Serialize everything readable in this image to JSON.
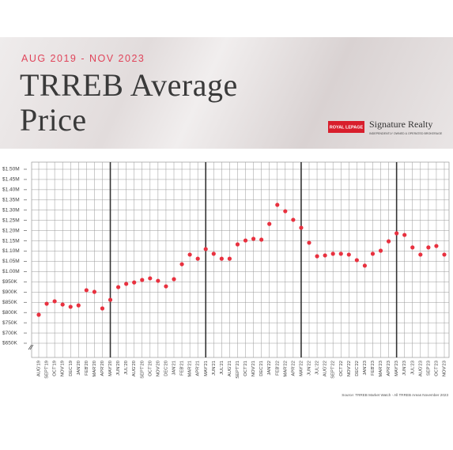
{
  "logo": {
    "brand": "ROYAL LEPAGE",
    "name": "Signature Realty",
    "tagline": "INDEPENDENTLY OWNED & OPERATED BROKERAGE"
  },
  "chart_data": {
    "type": "scatter",
    "title": "TRREB Average Price",
    "subtitle": "AUG 2019 - NOV 2023",
    "source": "Source: TRREB Market Watch - All TRREB Areas November 2023",
    "categories": [
      "AUG'19",
      "SEPT'19",
      "OCT'19",
      "NOV'19",
      "DEC'19",
      "JAN'20",
      "FEB'20",
      "MAR'20",
      "APR'20",
      "MAY'20",
      "JUN'20",
      "JUL'20",
      "AUG'20",
      "SEPT'20",
      "OCT'20",
      "NOV'20",
      "DEC'20",
      "JAN'21",
      "FEB'21",
      "MAR'21",
      "APR'21",
      "MAY'21",
      "JUN'21",
      "JUL'21",
      "AUG'21",
      "SEPT'21",
      "OCT'21",
      "NOV'21",
      "DEC'21",
      "JAN'22",
      "FEB'22",
      "MAR'22",
      "APR'22",
      "MAY'22",
      "JUN'22",
      "JUL'22",
      "AUG'22",
      "SEPT'22",
      "OCT'22",
      "NOV'22",
      "DEC'22",
      "JAN'23",
      "FEB'23",
      "MAR'23",
      "APR'23",
      "MAY'23",
      "JUN'23",
      "JUL'23",
      "AUG'23",
      "SEP'23",
      "OCT'23",
      "NOV'23"
    ],
    "values": [
      789000,
      843000,
      855000,
      839000,
      828000,
      835000,
      909000,
      901000,
      820000,
      862000,
      924000,
      940000,
      947000,
      959000,
      967000,
      955000,
      928000,
      963000,
      1036000,
      1083000,
      1063000,
      1110000,
      1087000,
      1063000,
      1063000,
      1133000,
      1152000,
      1160000,
      1156000,
      1233000,
      1326000,
      1295000,
      1253000,
      1214000,
      1141000,
      1075000,
      1079000,
      1087000,
      1087000,
      1083000,
      1056000,
      1029000,
      1087000,
      1102000,
      1148000,
      1187000,
      1179000,
      1118000,
      1083000,
      1118000,
      1125000,
      1083000
    ],
    "color": "#e8313f",
    "ylim": [
      650000,
      1500000
    ],
    "yticks": [
      {
        "value": 650000,
        "label": "$650K"
      },
      {
        "value": 700000,
        "label": "$700K"
      },
      {
        "value": 750000,
        "label": "$750K"
      },
      {
        "value": 800000,
        "label": "$800K"
      },
      {
        "value": 850000,
        "label": "$850K"
      },
      {
        "value": 900000,
        "label": "$900K"
      },
      {
        "value": 950000,
        "label": "$950K"
      },
      {
        "value": 1000000,
        "label": "$1.00M"
      },
      {
        "value": 1050000,
        "label": "$1.05M"
      },
      {
        "value": 1100000,
        "label": "$1.10M"
      },
      {
        "value": 1150000,
        "label": "$1.15M"
      },
      {
        "value": 1200000,
        "label": "$1.20M"
      },
      {
        "value": 1250000,
        "label": "$1.25M"
      },
      {
        "value": 1300000,
        "label": "$1.30M"
      },
      {
        "value": 1350000,
        "label": "$1.35M"
      },
      {
        "value": 1400000,
        "label": "$1.40M"
      },
      {
        "value": 1450000,
        "label": "$1.45M"
      },
      {
        "value": 1500000,
        "label": "$1.50M"
      }
    ],
    "grid": true
  }
}
